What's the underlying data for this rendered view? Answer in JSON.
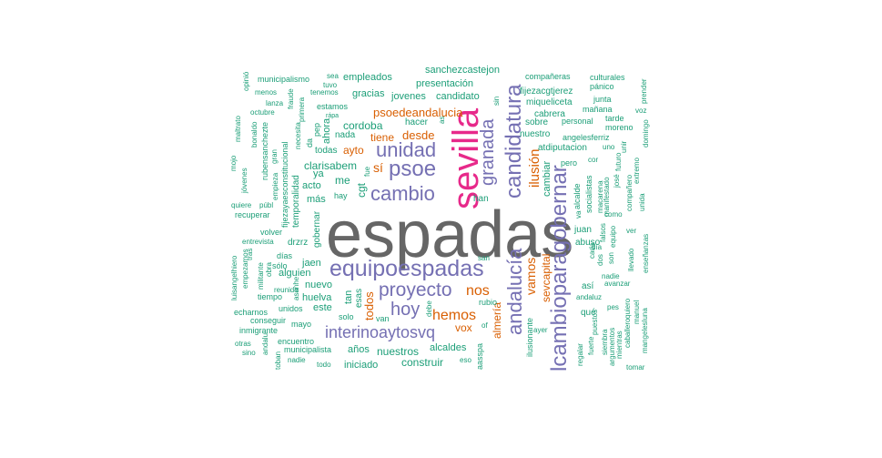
{
  "colors": {
    "gray": "#666666",
    "pink": "#e7298a",
    "purple": "#7570b3",
    "orange": "#d95f02",
    "teal": "#1b9e77"
  },
  "words": [
    {
      "text": "espadas",
      "color": "gray"
    },
    {
      "text": "sevilla",
      "color": "pink"
    },
    {
      "text": "equipoespadas",
      "color": "purple"
    },
    {
      "text": "candidatura",
      "color": "purple"
    },
    {
      "text": "lcambioparagobernar",
      "color": "purple"
    },
    {
      "text": "andalucía",
      "color": "purple"
    },
    {
      "text": "cambio",
      "color": "purple"
    },
    {
      "text": "psoe",
      "color": "purple"
    },
    {
      "text": "unidad",
      "color": "purple"
    },
    {
      "text": "granada",
      "color": "purple"
    },
    {
      "text": "proyecto",
      "color": "purple"
    },
    {
      "text": "hoy",
      "color": "purple"
    },
    {
      "text": "interinoaytosvq",
      "color": "purple"
    },
    {
      "text": "hemos",
      "color": "orange"
    },
    {
      "text": "nos",
      "color": "orange"
    },
    {
      "text": "vamos",
      "color": "orange"
    },
    {
      "text": "ilusión",
      "color": "orange"
    },
    {
      "text": "psoedeandalucia",
      "color": "orange"
    },
    {
      "text": "desde",
      "color": "orange"
    },
    {
      "text": "tiene",
      "color": "orange"
    },
    {
      "text": "sevcapital",
      "color": "orange"
    },
    {
      "text": "almería",
      "color": "orange"
    },
    {
      "text": "vox",
      "color": "orange"
    },
    {
      "text": "ayto",
      "color": "orange"
    },
    {
      "text": "está",
      "color": "orange"
    },
    {
      "text": "sí",
      "color": "orange"
    },
    {
      "text": "todos",
      "color": "orange"
    },
    {
      "text": "me",
      "color": "teal"
    },
    {
      "text": "clarisabem",
      "color": "teal"
    },
    {
      "text": "acto",
      "color": "teal"
    },
    {
      "text": "más",
      "color": "teal"
    },
    {
      "text": "cordoba",
      "color": "teal"
    },
    {
      "text": "nada",
      "color": "teal"
    },
    {
      "text": "todas",
      "color": "teal"
    },
    {
      "text": "gracias",
      "color": "teal"
    },
    {
      "text": "jovenes",
      "color": "teal"
    },
    {
      "text": "candidato",
      "color": "teal"
    },
    {
      "text": "empleados",
      "color": "teal"
    },
    {
      "text": "presentación",
      "color": "teal"
    },
    {
      "text": "sanchezcastejon",
      "color": "teal"
    },
    {
      "text": "fijezacgtjerez",
      "color": "teal"
    },
    {
      "text": "miqueliceta",
      "color": "teal"
    },
    {
      "text": "cabrera",
      "color": "teal"
    },
    {
      "text": "personal",
      "color": "teal"
    },
    {
      "text": "compañeras",
      "color": "teal"
    },
    {
      "text": "culturales",
      "color": "teal"
    },
    {
      "text": "pánico",
      "color": "teal"
    },
    {
      "text": "junta",
      "color": "teal"
    },
    {
      "text": "mañana",
      "color": "teal"
    },
    {
      "text": "tarde",
      "color": "teal"
    },
    {
      "text": "moreno",
      "color": "teal"
    },
    {
      "text": "nuestro",
      "color": "teal"
    },
    {
      "text": "angelesferriz",
      "color": "teal"
    },
    {
      "text": "atdiputacion",
      "color": "teal"
    },
    {
      "text": "sobre",
      "color": "teal"
    },
    {
      "text": "cambiar",
      "color": "teal"
    },
    {
      "text": "pero",
      "color": "teal"
    },
    {
      "text": "hacer",
      "color": "teal"
    },
    {
      "text": "han",
      "color": "teal"
    },
    {
      "text": "juan",
      "color": "teal"
    },
    {
      "text": "abuso",
      "color": "teal"
    },
    {
      "text": "así",
      "color": "teal"
    },
    {
      "text": "qué",
      "color": "teal"
    },
    {
      "text": "andaluz",
      "color": "teal"
    },
    {
      "text": "avanzar",
      "color": "teal"
    },
    {
      "text": "nadie",
      "color": "teal"
    },
    {
      "text": "puestos",
      "color": "teal"
    },
    {
      "text": "quiero",
      "color": "teal"
    },
    {
      "text": "manuel",
      "color": "teal"
    },
    {
      "text": "mangelesluna",
      "color": "teal"
    },
    {
      "text": "tomar",
      "color": "teal"
    },
    {
      "text": "nuestros",
      "color": "teal"
    },
    {
      "text": "construir",
      "color": "teal"
    },
    {
      "text": "alcaldes",
      "color": "teal"
    },
    {
      "text": "años",
      "color": "teal"
    },
    {
      "text": "iniciado",
      "color": "teal"
    },
    {
      "text": "municipalista",
      "color": "teal"
    },
    {
      "text": "encuentro",
      "color": "teal"
    },
    {
      "text": "inmigrante",
      "color": "teal"
    },
    {
      "text": "conseguir",
      "color": "teal"
    },
    {
      "text": "mayo",
      "color": "teal"
    },
    {
      "text": "solo",
      "color": "teal"
    },
    {
      "text": "van",
      "color": "teal"
    },
    {
      "text": "huelva",
      "color": "teal"
    },
    {
      "text": "este",
      "color": "teal"
    },
    {
      "text": "nuevo",
      "color": "teal"
    },
    {
      "text": "alguien",
      "color": "teal"
    },
    {
      "text": "jaen",
      "color": "teal"
    },
    {
      "text": "sólo",
      "color": "teal"
    },
    {
      "text": "días",
      "color": "teal"
    },
    {
      "text": "drzrz",
      "color": "teal"
    },
    {
      "text": "volver",
      "color": "teal"
    },
    {
      "text": "entrevista",
      "color": "teal"
    },
    {
      "text": "recuperar",
      "color": "teal"
    },
    {
      "text": "quiere",
      "color": "teal"
    },
    {
      "text": "públ",
      "color": "teal"
    },
    {
      "text": "tiempo",
      "color": "teal"
    },
    {
      "text": "echarnos",
      "color": "teal"
    },
    {
      "text": "unidos",
      "color": "teal"
    },
    {
      "text": "municipalismo",
      "color": "teal"
    },
    {
      "text": "menos",
      "color": "teal"
    },
    {
      "text": "lanza",
      "color": "teal"
    },
    {
      "text": "octubre",
      "color": "teal"
    },
    {
      "text": "tenemos",
      "color": "teal"
    },
    {
      "text": "estamos",
      "color": "teal"
    },
    {
      "text": "tuvo",
      "color": "teal"
    },
    {
      "text": "sea",
      "color": "teal"
    },
    {
      "text": "ya",
      "color": "teal"
    },
    {
      "text": "hay",
      "color": "teal"
    },
    {
      "text": "gobernar",
      "color": "teal"
    },
    {
      "text": "temporalidad",
      "color": "teal"
    },
    {
      "text": "fijezayaesconstitucional",
      "color": "teal"
    },
    {
      "text": "rubensanchezte",
      "color": "teal"
    },
    {
      "text": "empieza",
      "color": "teal"
    },
    {
      "text": "ahora",
      "color": "teal"
    },
    {
      "text": "maltrato",
      "color": "teal"
    },
    {
      "text": "mojo",
      "color": "teal"
    },
    {
      "text": "jóvenes",
      "color": "teal"
    },
    {
      "text": "gran",
      "color": "teal"
    },
    {
      "text": "necesita",
      "color": "teal"
    },
    {
      "text": "primera",
      "color": "teal"
    },
    {
      "text": "fraude",
      "color": "teal"
    },
    {
      "text": "opinió",
      "color": "teal"
    },
    {
      "text": "bonaldo",
      "color": "teal"
    },
    {
      "text": "luisangelhiero",
      "color": "teal"
    },
    {
      "text": "empezamos",
      "color": "teal"
    },
    {
      "text": "militante",
      "color": "teal"
    },
    {
      "text": "obra",
      "color": "teal"
    },
    {
      "text": "tras",
      "color": "teal"
    },
    {
      "text": "otras",
      "color": "teal"
    },
    {
      "text": "sino",
      "color": "teal"
    },
    {
      "text": "andalu",
      "color": "teal"
    },
    {
      "text": "toban",
      "color": "teal"
    },
    {
      "text": "nadie",
      "color": "teal"
    },
    {
      "text": "todo",
      "color": "teal"
    },
    {
      "text": "san",
      "color": "teal"
    },
    {
      "text": "rubio",
      "color": "teal"
    },
    {
      "text": "debe",
      "color": "teal"
    },
    {
      "text": "of",
      "color": "teal"
    },
    {
      "text": "eso",
      "color": "teal"
    },
    {
      "text": "ayer",
      "color": "teal"
    },
    {
      "text": "ilusionante",
      "color": "teal"
    },
    {
      "text": "regalar",
      "color": "teal"
    },
    {
      "text": "fuerte",
      "color": "teal"
    },
    {
      "text": "siembra",
      "color": "teal"
    },
    {
      "text": "argumentos",
      "color": "teal"
    },
    {
      "text": "mientras",
      "color": "teal"
    },
    {
      "text": "caballero",
      "color": "teal"
    },
    {
      "text": "enseñanzas",
      "color": "teal"
    },
    {
      "text": "llevado",
      "color": "teal"
    },
    {
      "text": "ver",
      "color": "teal"
    },
    {
      "text": "pes",
      "color": "teal"
    },
    {
      "text": "dos",
      "color": "teal"
    },
    {
      "text": "son",
      "color": "teal"
    },
    {
      "text": "cada",
      "color": "teal"
    },
    {
      "text": "día",
      "color": "teal"
    },
    {
      "text": "falsos",
      "color": "teal"
    },
    {
      "text": "equipo",
      "color": "teal"
    },
    {
      "text": "como",
      "color": "teal"
    },
    {
      "text": "va",
      "color": "teal"
    },
    {
      "text": "alcalde",
      "color": "teal"
    },
    {
      "text": "socialistas",
      "color": "teal"
    },
    {
      "text": "macarena",
      "color": "teal"
    },
    {
      "text": "manifestado",
      "color": "teal"
    },
    {
      "text": "compañero",
      "color": "teal"
    },
    {
      "text": "unida",
      "color": "teal"
    },
    {
      "text": "futuro",
      "color": "teal"
    },
    {
      "text": "extremo",
      "color": "teal"
    },
    {
      "text": "domingo",
      "color": "teal"
    },
    {
      "text": "uno",
      "color": "teal"
    },
    {
      "text": "unir",
      "color": "teal"
    },
    {
      "text": "cor",
      "color": "teal"
    },
    {
      "text": "josé",
      "color": "teal"
    },
    {
      "text": "voz",
      "color": "teal"
    },
    {
      "text": "prender",
      "color": "teal"
    },
    {
      "text": "sin",
      "color": "teal"
    },
    {
      "text": "as",
      "color": "teal"
    },
    {
      "text": "rápa",
      "color": "teal"
    },
    {
      "text": "fue",
      "color": "teal"
    },
    {
      "text": "aquí",
      "color": "teal"
    },
    {
      "text": "gobierno",
      "color": "teal"
    },
    {
      "text": "esa",
      "color": "teal"
    },
    {
      "text": "juev",
      "color": "teal"
    },
    {
      "text": "cadiz",
      "color": "teal"
    },
    {
      "text": "entre",
      "color": "teal"
    },
    {
      "text": "esta",
      "color": "orange"
    },
    {
      "text": "aasspa",
      "color": "teal"
    },
    {
      "text": "reunido",
      "color": "teal"
    },
    {
      "text": "asanhe",
      "color": "teal"
    },
    {
      "text": "esas",
      "color": "teal"
    },
    {
      "text": "tan",
      "color": "teal"
    },
    {
      "text": "cgt",
      "color": "teal"
    },
    {
      "text": "pep",
      "color": "teal"
    },
    {
      "text": "da",
      "color": "teal"
    }
  ]
}
